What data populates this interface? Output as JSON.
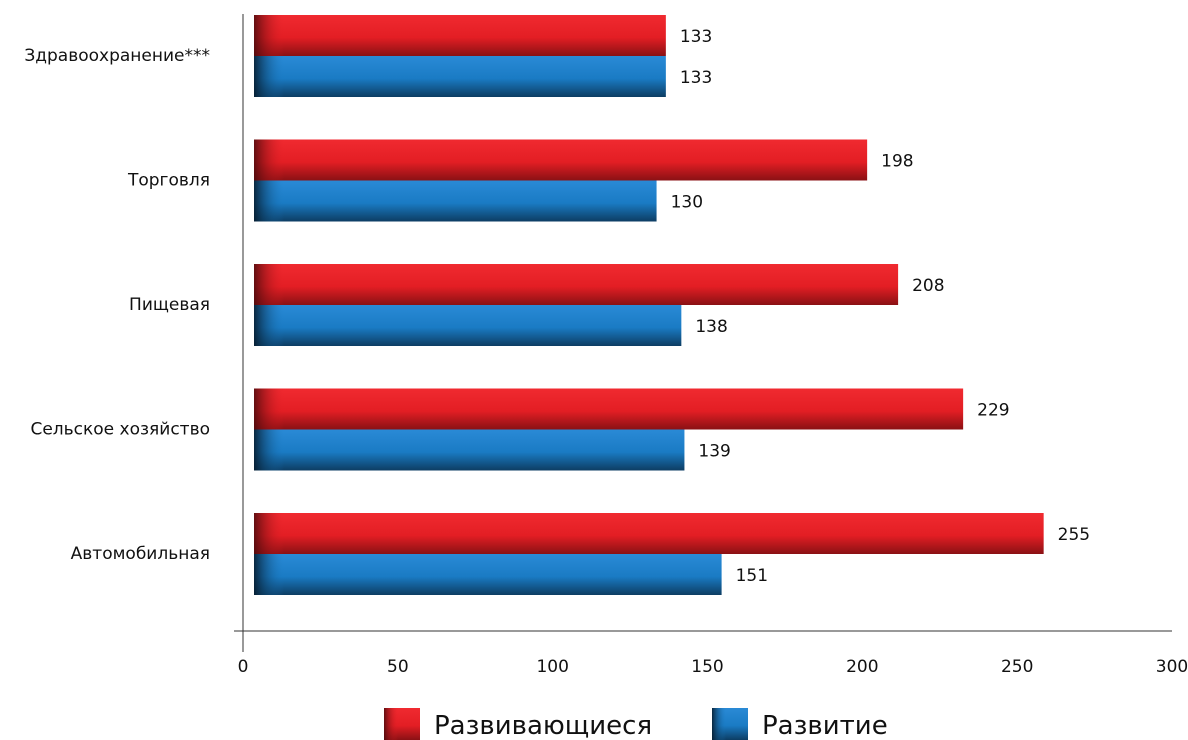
{
  "chart_data": {
    "type": "bar",
    "orientation": "horizontal",
    "categories": [
      "Здравоохранение***",
      "Торговля",
      "Пищевая",
      "Сельское хозяйство",
      "Автомобильная"
    ],
    "series": [
      {
        "name": "Развивающиеся",
        "values": [
          133,
          198,
          208,
          229,
          255
        ],
        "color": "#e31e24"
      },
      {
        "name": "Развитие",
        "values": [
          133,
          130,
          138,
          139,
          151
        ],
        "color": "#1a7bc4"
      }
    ],
    "xlim": [
      0,
      300
    ],
    "xticks": [
      0,
      50,
      100,
      150,
      200,
      250,
      300
    ],
    "grid": false,
    "legend_position": "bottom"
  }
}
